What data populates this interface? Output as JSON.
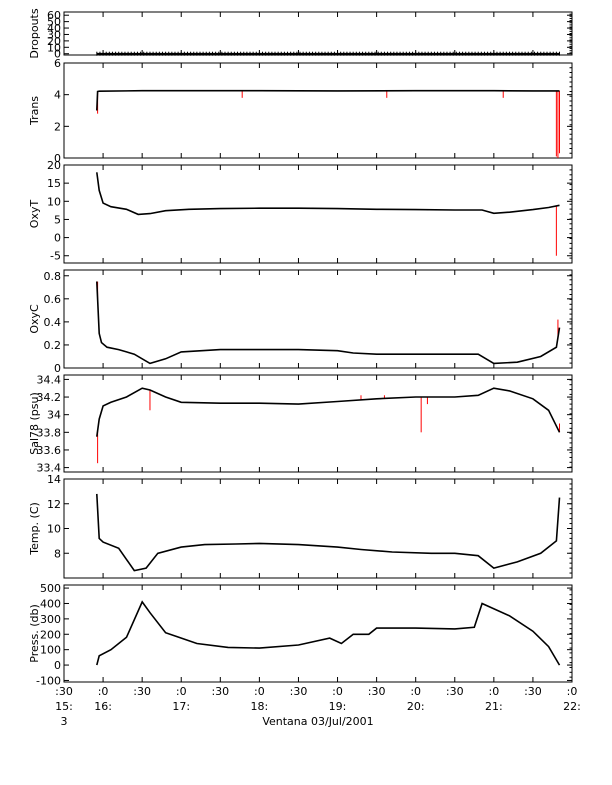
{
  "figure": {
    "xlabel": "Ventana 03/Jul/2001",
    "x_ticks": [
      {
        "t": 15.5,
        "label": ":30",
        "sub": "15:"
      },
      {
        "t": 16.0,
        "label": ":0",
        "sub": "16:"
      },
      {
        "t": 16.5,
        "label": ":30",
        "sub": ""
      },
      {
        "t": 17.0,
        "label": ":0",
        "sub": "17:"
      },
      {
        "t": 17.5,
        "label": ":30",
        "sub": ""
      },
      {
        "t": 18.0,
        "label": ":0",
        "sub": "18:"
      },
      {
        "t": 18.5,
        "label": ":30",
        "sub": ""
      },
      {
        "t": 19.0,
        "label": ":0",
        "sub": "19:"
      },
      {
        "t": 19.5,
        "label": ":30",
        "sub": ""
      },
      {
        "t": 20.0,
        "label": ":0",
        "sub": "20:"
      },
      {
        "t": 20.5,
        "label": ":30",
        "sub": ""
      },
      {
        "t": 21.0,
        "label": ":0",
        "sub": "21:"
      },
      {
        "t": 21.5,
        "label": ":30",
        "sub": ""
      },
      {
        "t": 22.0,
        "label": ":0",
        "sub": "22:"
      }
    ],
    "x_sub_extra": "3",
    "colors": {
      "data": "#000000",
      "spikes": "#ff0000",
      "axis": "#000000",
      "bg": "#ffffff"
    }
  },
  "chart_data": [
    {
      "type": "line",
      "ylabel": "Dropouts",
      "xlim": [
        15.5,
        22.0
      ],
      "ylim": [
        -2,
        65
      ],
      "yticks": [
        0,
        10,
        20,
        30,
        40,
        50,
        60
      ],
      "x": [
        15.92,
        21.84
      ],
      "y": [
        0,
        0
      ],
      "spikes": []
    },
    {
      "type": "line",
      "ylabel": "Trans",
      "xlim": [
        15.5,
        22.0
      ],
      "ylim": [
        0,
        6
      ],
      "yticks": [
        0,
        2,
        4,
        6
      ],
      "x": [
        15.92,
        15.93,
        15.95,
        16.5,
        17.0,
        18.0,
        19.0,
        20.0,
        21.0,
        21.5,
        21.84
      ],
      "y": [
        3.0,
        4.2,
        4.22,
        4.25,
        4.25,
        4.25,
        4.24,
        4.25,
        4.25,
        4.24,
        4.24
      ],
      "spikes": [
        {
          "x": 15.93,
          "y": 2.8
        },
        {
          "x": 17.78,
          "y": 3.8
        },
        {
          "x": 19.63,
          "y": 3.8
        },
        {
          "x": 21.12,
          "y": 3.8
        },
        {
          "x": 21.8,
          "y": 0.1
        },
        {
          "x": 21.82,
          "y": 0.0
        },
        {
          "x": 21.84,
          "y": 0.3
        }
      ]
    },
    {
      "type": "line",
      "ylabel": "OxyT",
      "xlim": [
        15.5,
        22.0
      ],
      "ylim": [
        -7,
        20
      ],
      "yticks": [
        -5,
        0,
        5,
        10,
        15,
        20
      ],
      "x": [
        15.92,
        15.95,
        16.0,
        16.1,
        16.3,
        16.45,
        16.6,
        16.8,
        17.1,
        17.5,
        18.0,
        18.5,
        19.0,
        19.5,
        20.0,
        20.5,
        20.85,
        21.0,
        21.2,
        21.5,
        21.7,
        21.84
      ],
      "y": [
        18,
        13,
        9.5,
        8.5,
        7.8,
        6.4,
        6.6,
        7.4,
        7.8,
        8.0,
        8.1,
        8.1,
        8.0,
        7.8,
        7.7,
        7.6,
        7.6,
        6.7,
        7.0,
        7.7,
        8.3,
        8.9
      ],
      "spikes": [
        {
          "x": 21.8,
          "y": -5.0
        }
      ]
    },
    {
      "type": "line",
      "ylabel": "OxyC",
      "xlim": [
        15.5,
        22.0
      ],
      "ylim": [
        0,
        0.85
      ],
      "yticks": [
        0.0,
        0.2,
        0.4,
        0.6,
        0.8
      ],
      "x": [
        15.92,
        15.95,
        15.98,
        16.05,
        16.2,
        16.4,
        16.6,
        16.8,
        17.0,
        17.5,
        18.0,
        18.5,
        19.0,
        19.2,
        19.5,
        20.0,
        20.5,
        20.8,
        21.0,
        21.3,
        21.6,
        21.8,
        21.84
      ],
      "y": [
        0.75,
        0.3,
        0.22,
        0.18,
        0.16,
        0.12,
        0.04,
        0.08,
        0.14,
        0.16,
        0.16,
        0.16,
        0.15,
        0.13,
        0.12,
        0.12,
        0.12,
        0.12,
        0.04,
        0.05,
        0.1,
        0.18,
        0.35
      ],
      "spikes": [
        {
          "x": 15.93,
          "y": 0.75
        },
        {
          "x": 21.82,
          "y": 0.42
        }
      ]
    },
    {
      "type": "line",
      "ylabel": "Sal78 (psu)",
      "xlim": [
        15.5,
        22.0
      ],
      "ylim": [
        33.35,
        34.45
      ],
      "yticks": [
        33.4,
        33.6,
        33.8,
        34.0,
        34.2,
        34.4
      ],
      "x": [
        15.92,
        15.95,
        16.0,
        16.1,
        16.3,
        16.5,
        16.6,
        16.8,
        17.0,
        17.5,
        18.0,
        18.5,
        19.0,
        19.5,
        20.0,
        20.5,
        20.8,
        21.0,
        21.2,
        21.5,
        21.7,
        21.84
      ],
      "y": [
        33.75,
        33.95,
        34.1,
        34.14,
        34.2,
        34.3,
        34.28,
        34.2,
        34.14,
        34.13,
        34.13,
        34.12,
        34.15,
        34.18,
        34.2,
        34.2,
        34.22,
        34.3,
        34.27,
        34.18,
        34.05,
        33.8
      ],
      "spikes": [
        {
          "x": 15.93,
          "y": 33.45
        },
        {
          "x": 16.6,
          "y": 34.05
        },
        {
          "x": 19.3,
          "y": 34.22
        },
        {
          "x": 19.6,
          "y": 34.22
        },
        {
          "x": 20.07,
          "y": 33.8
        },
        {
          "x": 20.15,
          "y": 34.12
        },
        {
          "x": 21.84,
          "y": 33.9
        }
      ]
    },
    {
      "type": "line",
      "ylabel": "Temp. (C)",
      "xlim": [
        15.5,
        22.0
      ],
      "ylim": [
        6,
        14
      ],
      "yticks": [
        8,
        10,
        12,
        14
      ],
      "x": [
        15.92,
        15.95,
        16.0,
        16.2,
        16.4,
        16.55,
        16.7,
        17.0,
        17.3,
        17.7,
        18.0,
        18.5,
        19.0,
        19.3,
        19.7,
        20.2,
        20.5,
        20.8,
        21.0,
        21.3,
        21.6,
        21.8,
        21.84
      ],
      "y": [
        12.8,
        9.2,
        8.9,
        8.4,
        6.6,
        6.8,
        8.0,
        8.5,
        8.7,
        8.75,
        8.8,
        8.7,
        8.5,
        8.3,
        8.1,
        8.0,
        8.0,
        7.8,
        6.8,
        7.3,
        8.0,
        9.0,
        12.5
      ],
      "spikes": []
    },
    {
      "type": "line",
      "ylabel": "Press. (db)",
      "xlim": [
        15.5,
        22.0
      ],
      "ylim": [
        -110,
        520
      ],
      "yticks": [
        -100,
        0,
        100,
        200,
        300,
        400,
        500
      ],
      "x": [
        15.92,
        15.95,
        16.1,
        16.3,
        16.5,
        16.6,
        16.8,
        17.2,
        17.6,
        18.0,
        18.5,
        18.9,
        19.05,
        19.2,
        19.4,
        19.5,
        20.0,
        20.5,
        20.75,
        20.85,
        21.2,
        21.5,
        21.7,
        21.84
      ],
      "y": [
        0,
        60,
        100,
        180,
        410,
        340,
        210,
        140,
        115,
        110,
        130,
        175,
        140,
        200,
        200,
        240,
        240,
        235,
        245,
        400,
        320,
        220,
        120,
        0
      ],
      "spikes": []
    }
  ]
}
